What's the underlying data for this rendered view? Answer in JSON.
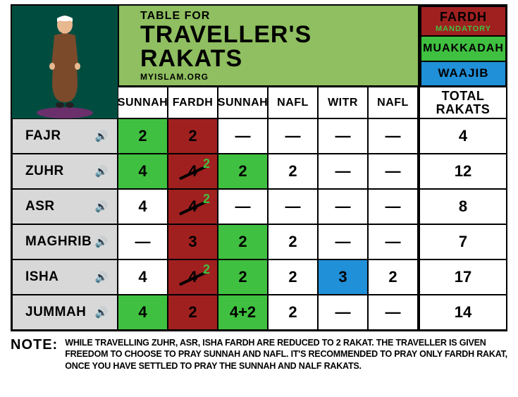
{
  "title": {
    "small": "TABLE FOR",
    "big": "TRAVELLER'S RAKATS",
    "sub": "MYISLAM.ORG"
  },
  "legend": {
    "fardh": "FARDH",
    "fardh_sub": "MANDATORY",
    "muak": "MUAKKADAH",
    "waajib": "WAAJIB"
  },
  "colors": {
    "header_bg": "#8fbf60",
    "illust_bg": "#004d40",
    "row_header_bg": "#d8d8d8",
    "green": "#40c040",
    "red": "#a02020",
    "blue": "#2090d8",
    "white": "#ffffff",
    "black": "#000000"
  },
  "columns": [
    "SUNNAH",
    "FARDH",
    "SUNNAH",
    "NAFL",
    "WITR",
    "NAFL"
  ],
  "total_label": "TOTAL RAKATS",
  "rows": [
    {
      "name": "FAJR",
      "cells": [
        {
          "v": "2",
          "bg": "green"
        },
        {
          "v": "2",
          "bg": "red"
        },
        {
          "v": "—",
          "bg": "white"
        },
        {
          "v": "—",
          "bg": "white"
        },
        {
          "v": "—",
          "bg": "white"
        },
        {
          "v": "—",
          "bg": "white"
        }
      ],
      "total": "4"
    },
    {
      "name": "ZUHR",
      "cells": [
        {
          "v": "4",
          "bg": "green"
        },
        {
          "v": "4",
          "bg": "red",
          "strike": true,
          "super": "2"
        },
        {
          "v": "2",
          "bg": "green"
        },
        {
          "v": "2",
          "bg": "white"
        },
        {
          "v": "—",
          "bg": "white"
        },
        {
          "v": "—",
          "bg": "white"
        }
      ],
      "total": "12"
    },
    {
      "name": "ASR",
      "cells": [
        {
          "v": "4",
          "bg": "white"
        },
        {
          "v": "4",
          "bg": "red",
          "strike": true,
          "super": "2"
        },
        {
          "v": "—",
          "bg": "white"
        },
        {
          "v": "—",
          "bg": "white"
        },
        {
          "v": "—",
          "bg": "white"
        },
        {
          "v": "—",
          "bg": "white"
        }
      ],
      "total": "8"
    },
    {
      "name": "MAGHRIB",
      "cells": [
        {
          "v": "—",
          "bg": "white"
        },
        {
          "v": "3",
          "bg": "red"
        },
        {
          "v": "2",
          "bg": "green"
        },
        {
          "v": "2",
          "bg": "white"
        },
        {
          "v": "—",
          "bg": "white"
        },
        {
          "v": "—",
          "bg": "white"
        }
      ],
      "total": "7"
    },
    {
      "name": "ISHA",
      "cells": [
        {
          "v": "4",
          "bg": "white"
        },
        {
          "v": "4",
          "bg": "red",
          "strike": true,
          "super": "2"
        },
        {
          "v": "2",
          "bg": "green"
        },
        {
          "v": "2",
          "bg": "white"
        },
        {
          "v": "3",
          "bg": "blue"
        },
        {
          "v": "2",
          "bg": "white"
        }
      ],
      "total": "17"
    },
    {
      "name": "JUMMAH",
      "cells": [
        {
          "v": "4",
          "bg": "green"
        },
        {
          "v": "2",
          "bg": "red"
        },
        {
          "v": "4+2",
          "bg": "green"
        },
        {
          "v": "2",
          "bg": "white"
        },
        {
          "v": "—",
          "bg": "white"
        },
        {
          "v": "—",
          "bg": "white"
        }
      ],
      "total": "14"
    }
  ],
  "note_label": "NOTE:",
  "note_text": "WHILE TRAVELLING ZUHR, ASR, ISHA FARDH ARE REDUCED TO 2 RAKAT. THE TRAVELLER IS GIVEN FREEDOM TO CHOOSE TO PRAY SUNNAH AND NAFL. IT'S RECOMMENDED TO PRAY ONLY FARDH RAKAT, ONCE YOU HAVE SETTLED TO PRAY THE SUNNAH AND NALF RAKATS."
}
